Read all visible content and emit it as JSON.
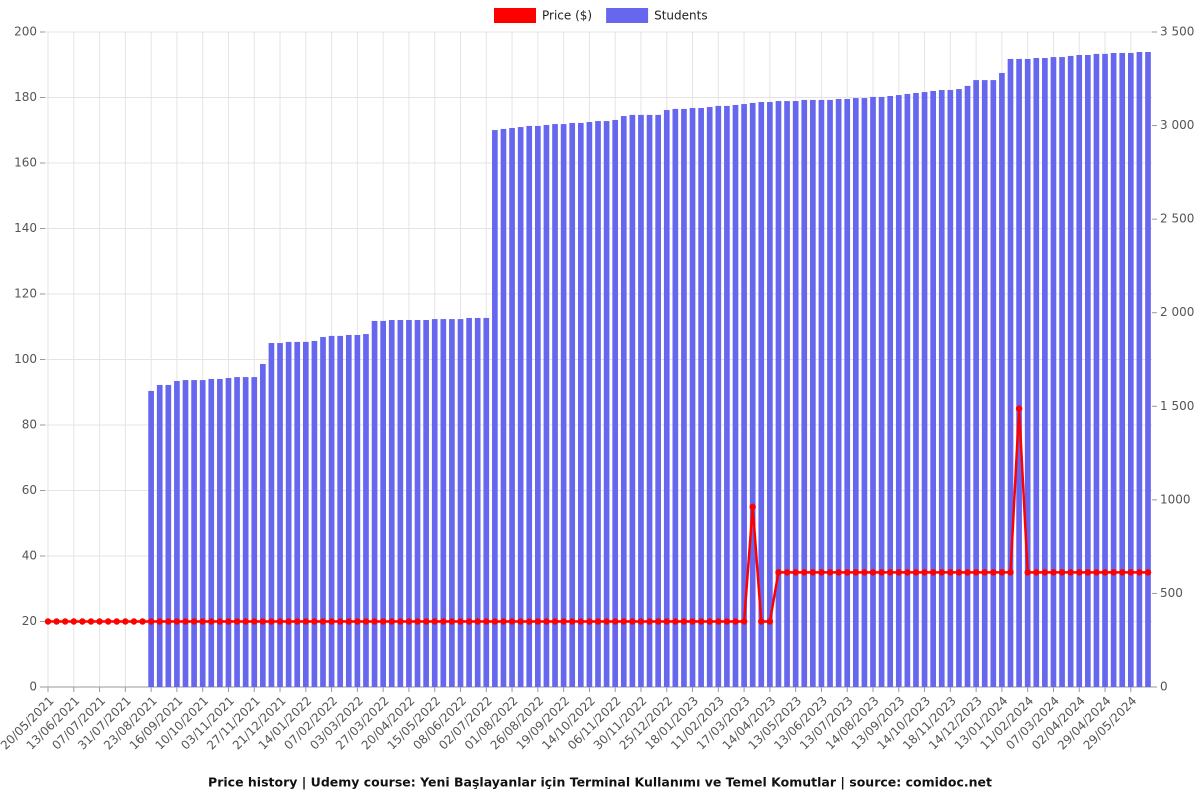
{
  "chart_data": {
    "type": "bar",
    "title": "Price history | Udemy course: Yeni Başlayanlar için Terminal Kullanımı ve Temel Komutlar | source: comidoc.net",
    "categories": [
      "20/05/2021",
      null,
      null,
      "13/06/2021",
      null,
      null,
      "07/07/2021",
      null,
      null,
      "31/07/2021",
      null,
      null,
      "23/08/2021",
      null,
      null,
      "16/09/2021",
      null,
      null,
      "10/10/2021",
      null,
      null,
      "03/11/2021",
      null,
      null,
      "27/11/2021",
      null,
      null,
      "21/12/2021",
      null,
      null,
      "14/01/2022",
      null,
      null,
      "07/02/2022",
      null,
      null,
      "03/03/2022",
      null,
      null,
      "27/03/2022",
      null,
      null,
      "20/04/2022",
      null,
      null,
      "15/05/2022",
      null,
      null,
      "08/06/2022",
      null,
      null,
      "02/07/2022",
      null,
      null,
      "01/08/2022",
      null,
      null,
      "26/08/2022",
      null,
      null,
      "19/09/2022",
      null,
      null,
      "14/10/2022",
      null,
      null,
      "06/11/2022",
      null,
      null,
      "30/11/2022",
      null,
      null,
      "25/12/2022",
      null,
      null,
      "18/01/2023",
      null,
      null,
      "11/02/2023",
      null,
      null,
      "17/03/2023",
      null,
      null,
      "14/04/2023",
      null,
      null,
      "13/05/2023",
      null,
      null,
      "13/06/2023",
      null,
      null,
      "13/07/2023",
      null,
      null,
      "14/08/2023",
      null,
      null,
      "13/09/2023",
      null,
      null,
      "14/10/2023",
      null,
      null,
      "18/11/2023",
      null,
      null,
      "14/12/2023",
      null,
      null,
      "13/01/2024",
      null,
      null,
      "11/02/2024",
      null,
      null,
      "07/03/2024",
      null,
      null,
      "02/04/2024",
      null,
      null,
      "29/04/2024",
      null,
      null,
      "29/05/2024",
      null,
      null
    ],
    "series": [
      {
        "name": "Price ($)",
        "type": "line",
        "axis": "y",
        "color": "#ff0000",
        "values": [
          20,
          20,
          20,
          20,
          20,
          20,
          20,
          20,
          20,
          20,
          20,
          20,
          20,
          20,
          20,
          20,
          20,
          20,
          20,
          20,
          20,
          20,
          20,
          20,
          20,
          20,
          20,
          20,
          20,
          20,
          20,
          20,
          20,
          20,
          20,
          20,
          20,
          20,
          20,
          20,
          20,
          20,
          20,
          20,
          20,
          20,
          20,
          20,
          20,
          20,
          20,
          20,
          20,
          20,
          20,
          20,
          20,
          20,
          20,
          20,
          20,
          20,
          20,
          20,
          20,
          20,
          20,
          20,
          20,
          20,
          20,
          20,
          20,
          20,
          20,
          20,
          20,
          20,
          20,
          20,
          20,
          20,
          55,
          20,
          20,
          35,
          35,
          35,
          35,
          35,
          35,
          35,
          35,
          35,
          35,
          35,
          35,
          35,
          35,
          35,
          35,
          35,
          35,
          35,
          35,
          35,
          35,
          35,
          35,
          35,
          35,
          35,
          35,
          85,
          35,
          35,
          35,
          35,
          35,
          35,
          35,
          35,
          35,
          35,
          35,
          35,
          35,
          35,
          35
        ]
      },
      {
        "name": "Students",
        "type": "bar",
        "axis": "y2",
        "color": "#6666ee",
        "values": [
          null,
          null,
          null,
          null,
          null,
          null,
          null,
          null,
          null,
          null,
          null,
          null,
          1582,
          1614,
          1614,
          1635,
          1640,
          1640,
          1640,
          1646,
          1646,
          1651,
          1656,
          1656,
          1656,
          1726,
          1838,
          1838,
          1844,
          1844,
          1844,
          1849,
          1870,
          1876,
          1876,
          1881,
          1881,
          1886,
          1956,
          1956,
          1961,
          1961,
          1961,
          1961,
          1961,
          1966,
          1966,
          1966,
          1966,
          1972,
          1972,
          1972,
          2976,
          2982,
          2987,
          2992,
          2998,
          2998,
          3003,
          3008,
          3008,
          3014,
          3014,
          3019,
          3024,
          3024,
          3030,
          3051,
          3057,
          3057,
          3057,
          3057,
          3083,
          3089,
          3089,
          3094,
          3094,
          3099,
          3105,
          3105,
          3110,
          3115,
          3121,
          3126,
          3126,
          3131,
          3131,
          3131,
          3137,
          3137,
          3137,
          3137,
          3142,
          3142,
          3147,
          3147,
          3153,
          3153,
          3158,
          3163,
          3169,
          3174,
          3179,
          3185,
          3190,
          3190,
          3195,
          3212,
          3243,
          3243,
          3243,
          3281,
          3356,
          3356,
          3356,
          3361,
          3361,
          3366,
          3366,
          3372,
          3377,
          3377,
          3383,
          3383,
          3388,
          3388,
          3388,
          3393,
          3393
        ]
      }
    ],
    "ylim": [
      0,
      200
    ],
    "yticks": [
      0,
      20,
      40,
      60,
      80,
      100,
      120,
      140,
      160,
      180,
      200
    ],
    "y2lim": [
      0,
      3500
    ],
    "y2ticks": [
      0,
      500,
      1000,
      {
        "value": 1500,
        "label": "1 500"
      },
      {
        "value": 2000,
        "label": "2 000"
      },
      {
        "value": 2500,
        "label": "2 500"
      },
      {
        "value": 3000,
        "label": "3 000"
      },
      {
        "value": 3500,
        "label": "3 500"
      }
    ],
    "grid": true,
    "legend": "top"
  }
}
